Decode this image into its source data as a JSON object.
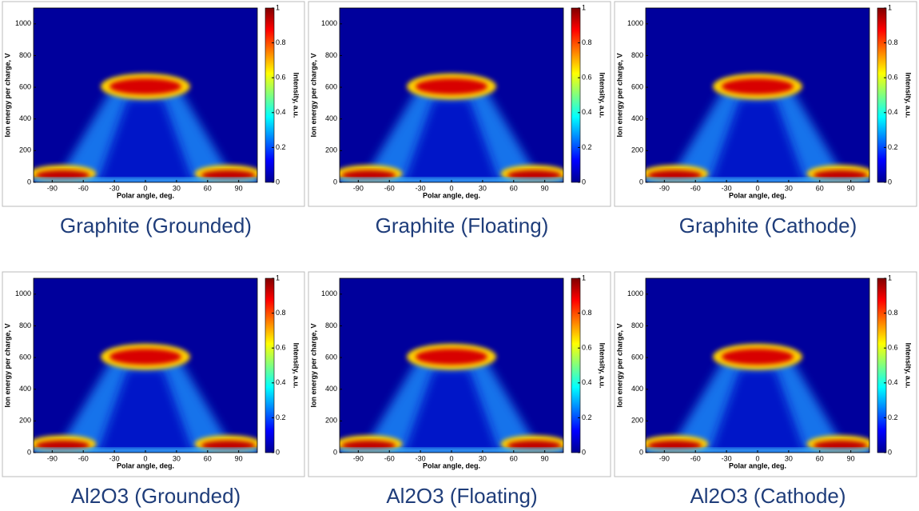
{
  "chart_data": [
    {
      "type": "heatmap",
      "title": "Graphite (Grounded)",
      "xlabel": "Polar angle, deg.",
      "ylabel": "Ion energy per charge, V",
      "colorbar_label": "Intensity, a.u.",
      "xlim": [
        -108,
        108
      ],
      "xticks": [
        -90,
        -60,
        -30,
        0,
        30,
        60,
        90
      ],
      "ylim": [
        0,
        1100
      ],
      "yticks": [
        0,
        200,
        400,
        600,
        800,
        1000
      ],
      "clim": [
        0,
        1
      ],
      "cticks": [
        0,
        0.2,
        0.4,
        0.6,
        0.8,
        1
      ]
    },
    {
      "type": "heatmap",
      "title": "Graphite (Floating)",
      "xlabel": "Polar angle, deg.",
      "ylabel": "Ion energy per charge, V",
      "colorbar_label": "Intensity, a.u.",
      "xlim": [
        -108,
        108
      ],
      "xticks": [
        -90,
        -60,
        -30,
        0,
        30,
        60,
        90
      ],
      "ylim": [
        0,
        1100
      ],
      "yticks": [
        0,
        200,
        400,
        600,
        800,
        1000
      ],
      "clim": [
        0,
        1
      ],
      "cticks": [
        0,
        0.2,
        0.4,
        0.6,
        0.8,
        1
      ]
    },
    {
      "type": "heatmap",
      "title": "Graphite (Cathode)",
      "xlabel": "Polar angle, deg.",
      "ylabel": "Ion energy per charge, V",
      "colorbar_label": "Intensity, a.u.",
      "xlim": [
        -108,
        108
      ],
      "xticks": [
        -90,
        -60,
        -30,
        0,
        30,
        60,
        90
      ],
      "ylim": [
        0,
        1100
      ],
      "yticks": [
        0,
        200,
        400,
        600,
        800,
        1000
      ],
      "clim": [
        0,
        1
      ],
      "cticks": [
        0,
        0.2,
        0.4,
        0.6,
        0.8,
        1
      ]
    },
    {
      "type": "heatmap",
      "title": "Al2O3 (Grounded)",
      "xlabel": "Polar angle, deg.",
      "ylabel": "Ion energy per charge, V",
      "colorbar_label": "Intensity, a.u.",
      "xlim": [
        -108,
        108
      ],
      "xticks": [
        -90,
        -60,
        -30,
        0,
        30,
        60,
        90
      ],
      "ylim": [
        0,
        1100
      ],
      "yticks": [
        0,
        200,
        400,
        600,
        800,
        1000
      ],
      "clim": [
        0,
        1
      ],
      "cticks": [
        0,
        0.2,
        0.4,
        0.6,
        0.8,
        1
      ]
    },
    {
      "type": "heatmap",
      "title": "Al2O3 (Floating)",
      "xlabel": "Polar angle, deg.",
      "ylabel": "Ion energy per charge, V",
      "colorbar_label": "Intensity, a.u.",
      "xlim": [
        -108,
        108
      ],
      "xticks": [
        -90,
        -60,
        -30,
        0,
        30,
        60,
        90
      ],
      "ylim": [
        0,
        1100
      ],
      "yticks": [
        0,
        200,
        400,
        600,
        800,
        1000
      ],
      "clim": [
        0,
        1
      ],
      "cticks": [
        0,
        0.2,
        0.4,
        0.6,
        0.8,
        1
      ]
    },
    {
      "type": "heatmap",
      "title": "Al2O3 (Cathode)",
      "xlabel": "Polar angle, deg.",
      "ylabel": "Ion energy per charge, V",
      "colorbar_label": "Intensity, a.u.",
      "xlim": [
        -108,
        108
      ],
      "xticks": [
        -90,
        -60,
        -30,
        0,
        30,
        60,
        90
      ],
      "ylim": [
        0,
        1100
      ],
      "yticks": [
        0,
        200,
        400,
        600,
        800,
        1000
      ],
      "clim": [
        0,
        1
      ],
      "cticks": [
        0,
        0.2,
        0.4,
        0.6,
        0.8,
        1
      ]
    }
  ]
}
